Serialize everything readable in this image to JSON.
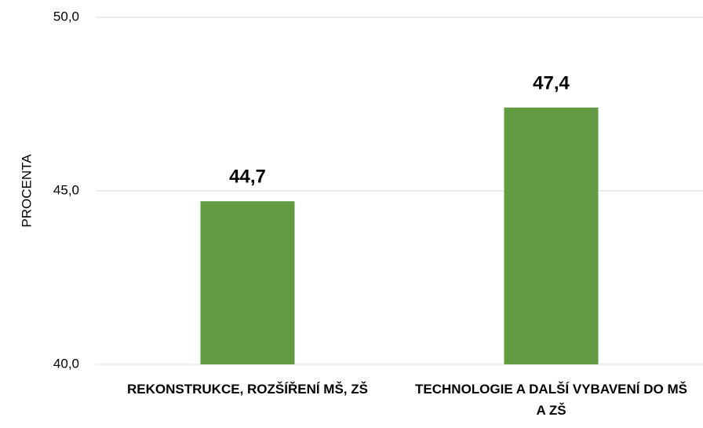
{
  "chart_data": {
    "type": "bar",
    "y_label": "PROCENTA",
    "categories": [
      "REKONSTRUKCE, ROZŠÍŘENÍ MŠ, ZŠ",
      "TECHNOLOGIE A DALŠÍ VYBAVENÍ DO MŠ A ZŠ"
    ],
    "values": [
      44.7,
      47.4
    ],
    "value_labels": [
      "44,7",
      "47,4"
    ],
    "color": "#629b41",
    "ylim": [
      40,
      50
    ],
    "yticks": [
      {
        "value": 40,
        "label": "40,0"
      },
      {
        "value": 45,
        "label": "45,0"
      },
      {
        "value": 50,
        "label": "50,0"
      }
    ],
    "grid": true
  }
}
